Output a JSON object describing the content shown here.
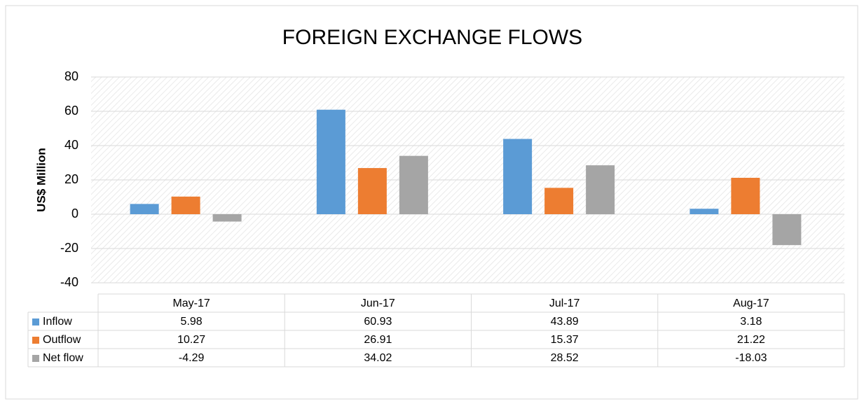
{
  "chart_data": {
    "type": "bar",
    "title": "FOREIGN EXCHANGE FLOWS",
    "y_label": "US$ Million",
    "categories": [
      "May-17",
      "Jun-17",
      "Jul-17",
      "Aug-17"
    ],
    "series": [
      {
        "name": "Inflow",
        "color": "#5b9bd5",
        "values": [
          5.98,
          60.93,
          43.89,
          3.18
        ]
      },
      {
        "name": "Outflow",
        "color": "#ed7d31",
        "values": [
          10.27,
          26.91,
          15.37,
          21.22
        ]
      },
      {
        "name": "Net flow",
        "color": "#a5a5a5",
        "values": [
          -4.29,
          34.02,
          28.52,
          -18.03
        ]
      }
    ],
    "ylim": [
      -40,
      80
    ],
    "yticks": [
      -40,
      -20,
      0,
      20,
      40,
      60,
      80
    ],
    "grid": true,
    "data_table": true
  }
}
